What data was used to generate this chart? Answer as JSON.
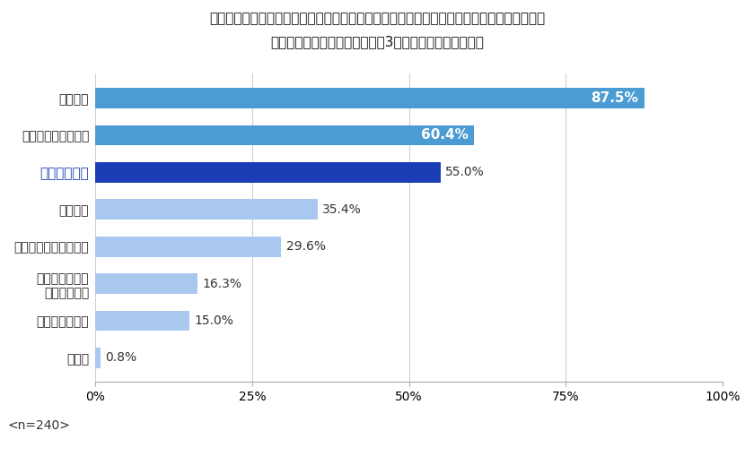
{
  "title_line1": "男性の顔周りの身だしなみで、「これはしっかりやってほしい！」と思うのはどれですか？",
  "title_line2": "重要だと思うもののうち、上位3つを選択してください。",
  "categories": [
    "口臭ケア",
    "鼻毛・眉毛の手入れ",
    "ヒゲの手入れ",
    "ヘアケア",
    "ニキビ・毛穴の手入れ",
    "白い歯のための\nデンタルケア",
    "肌のテカり対策",
    "その他"
  ],
  "values": [
    87.5,
    60.4,
    55.0,
    35.4,
    29.6,
    16.3,
    15.0,
    0.8
  ],
  "bar_colors": [
    "#4b9cd3",
    "#4b9cd3",
    "#1b3db5",
    "#a8c8f0",
    "#a8c8f0",
    "#a8c8f0",
    "#a8c8f0",
    "#a8c8f0"
  ],
  "value_labels": [
    "87.5%",
    "60.4%",
    "55.0%",
    "35.4%",
    "29.6%",
    "16.3%",
    "15.0%",
    "0.8%"
  ],
  "label_inside": [
    true,
    true,
    false,
    false,
    false,
    false,
    false,
    false
  ],
  "label_text_colors_inside": [
    "#ffffff",
    "#ffffff"
  ],
  "label_text_color_outside": "#333333",
  "highlight_index": 2,
  "highlight_label_color": "#1b3db5",
  "highlight_label_bold": true,
  "n_label": "<n=240>",
  "xlim": [
    0,
    100
  ],
  "xticks": [
    0,
    25,
    50,
    75,
    100
  ],
  "xticklabels": [
    "0%",
    "25%",
    "50%",
    "75%",
    "100%"
  ],
  "bg_color": "#ffffff",
  "grid_color": "#d0d0d0",
  "bar_height": 0.55,
  "title_fontsize": 11,
  "tick_fontsize": 10,
  "value_fontsize_inside": 11,
  "value_fontsize_outside": 10
}
